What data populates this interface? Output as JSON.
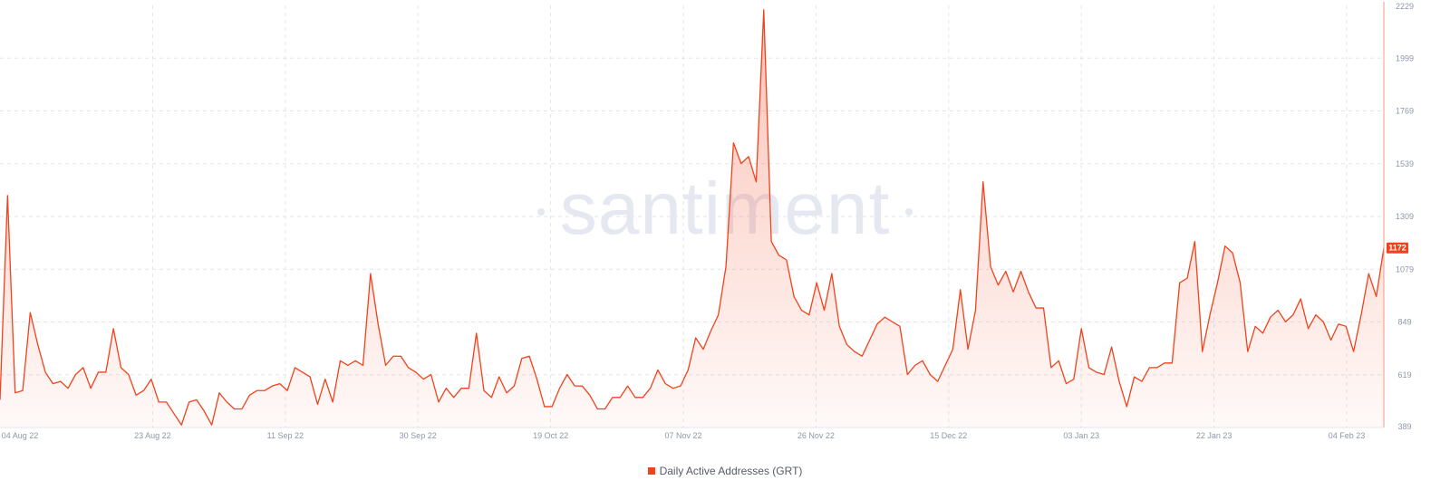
{
  "chart_data": {
    "type": "area",
    "watermark": "santiment",
    "colors": {
      "line": "#f2411b",
      "fill": "#f2411b",
      "grid": "#e3e5eb",
      "text": "#8e96a8"
    },
    "grid": true,
    "legend_position": "bottom-center",
    "x_tick_labels": [
      "04 Aug 22",
      "23 Aug 22",
      "11 Sep 22",
      "30 Sep 22",
      "19 Oct 22",
      "07 Nov 22",
      "26 Nov 22",
      "15 Dec 22",
      "03 Jan 23",
      "22 Jan 23",
      "04 Feb 23"
    ],
    "y_tick_labels": [
      "389",
      "619",
      "849",
      "1079",
      "1309",
      "1539",
      "1769",
      "1999",
      "2229"
    ],
    "ylim": [
      389,
      2229
    ],
    "y_axis_position": "right",
    "last_value_label": "1172",
    "x_start": "2022-08-04",
    "x_end": "2023-02-04",
    "series": [
      {
        "name": "Daily Active Addresses (GRT)",
        "values": [
          510,
          1400,
          540,
          550,
          890,
          750,
          630,
          580,
          590,
          560,
          620,
          650,
          560,
          630,
          630,
          820,
          650,
          620,
          530,
          550,
          600,
          500,
          500,
          450,
          400,
          500,
          510,
          460,
          400,
          540,
          500,
          470,
          470,
          530,
          550,
          550,
          570,
          580,
          550,
          650,
          630,
          610,
          490,
          600,
          500,
          680,
          660,
          680,
          660,
          1060,
          840,
          660,
          700,
          700,
          650,
          630,
          600,
          620,
          500,
          560,
          520,
          560,
          560,
          800,
          550,
          520,
          610,
          540,
          570,
          690,
          700,
          600,
          480,
          480,
          560,
          620,
          570,
          570,
          530,
          470,
          470,
          520,
          520,
          570,
          520,
          520,
          560,
          640,
          580,
          560,
          570,
          640,
          780,
          730,
          810,
          880,
          1090,
          1630,
          1540,
          1570,
          1460,
          2210,
          1200,
          1140,
          1120,
          960,
          900,
          880,
          1020,
          900,
          1060,
          830,
          750,
          720,
          700,
          770,
          840,
          870,
          850,
          830,
          620,
          660,
          680,
          620,
          590,
          660,
          730,
          990,
          730,
          900,
          1460,
          1090,
          1010,
          1070,
          980,
          1070,
          980,
          910,
          910,
          650,
          680,
          580,
          600,
          820,
          650,
          630,
          620,
          740,
          590,
          480,
          610,
          590,
          650,
          650,
          670,
          670,
          1020,
          1040,
          1200,
          720,
          880,
          1020,
          1180,
          1150,
          1020,
          720,
          830,
          800,
          870,
          900,
          850,
          880,
          950,
          820,
          880,
          850,
          770,
          840,
          830,
          720,
          880,
          1060,
          960,
          1172
        ]
      }
    ]
  }
}
